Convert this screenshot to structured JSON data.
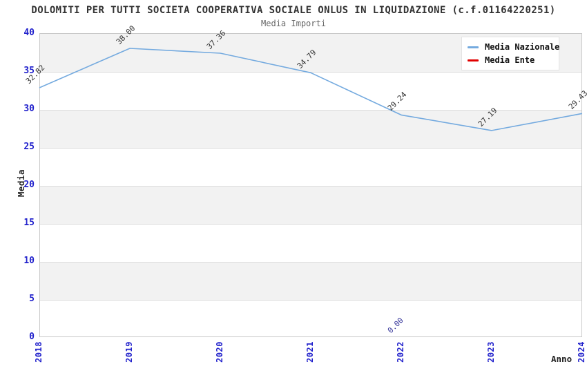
{
  "page": {
    "title": "DOLOMITI PER TUTTI SOCIETA COOPERATIVA SOCIALE ONLUS IN LIQUIDAZIONE (c.f.01164220251)",
    "subtitle": "Media Importi"
  },
  "chart_data": {
    "type": "line",
    "title": "DOLOMITI PER TUTTI SOCIETA COOPERATIVA SOCIALE ONLUS IN LIQUIDAZIONE (c.f.01164220251)",
    "subtitle": "Media Importi",
    "xlabel": "Anno",
    "ylabel": "Media",
    "x": [
      2018,
      2019,
      2020,
      2021,
      2022,
      2023,
      2024
    ],
    "xticklabels": [
      "2018",
      "2019",
      "2020",
      "2021",
      "2022",
      "2023",
      "2024"
    ],
    "ylim": [
      0,
      40
    ],
    "yticks": [
      0,
      5,
      10,
      15,
      20,
      25,
      30,
      35,
      40
    ],
    "grid": "horizontal alternating gray/white bands every 5 units",
    "legend_position": "top-right",
    "series": [
      {
        "name": "Media Nazionale",
        "color": "#74aadf",
        "label_color": "#333333",
        "values": [
          32.82,
          38.0,
          37.36,
          34.79,
          29.24,
          27.19,
          29.43
        ],
        "point_labels": [
          "32.82",
          "38.00",
          "37.36",
          "34.79",
          "29.24",
          "27.19",
          "29.43"
        ]
      },
      {
        "name": "Media Ente",
        "color": "#e10000",
        "label_color": "#333399",
        "values": [
          null,
          null,
          null,
          null,
          0.0,
          null,
          null
        ],
        "point_labels": [
          null,
          null,
          null,
          null,
          "0.00",
          null,
          null
        ]
      }
    ]
  },
  "colors": {
    "axis_tick_label": "#2222cc",
    "band_gray": "#f2f2f2",
    "grid_line": "#dcdcdc",
    "plot_border": "#c8c8c8",
    "title_text": "#333333",
    "subtitle_text": "#666666"
  }
}
